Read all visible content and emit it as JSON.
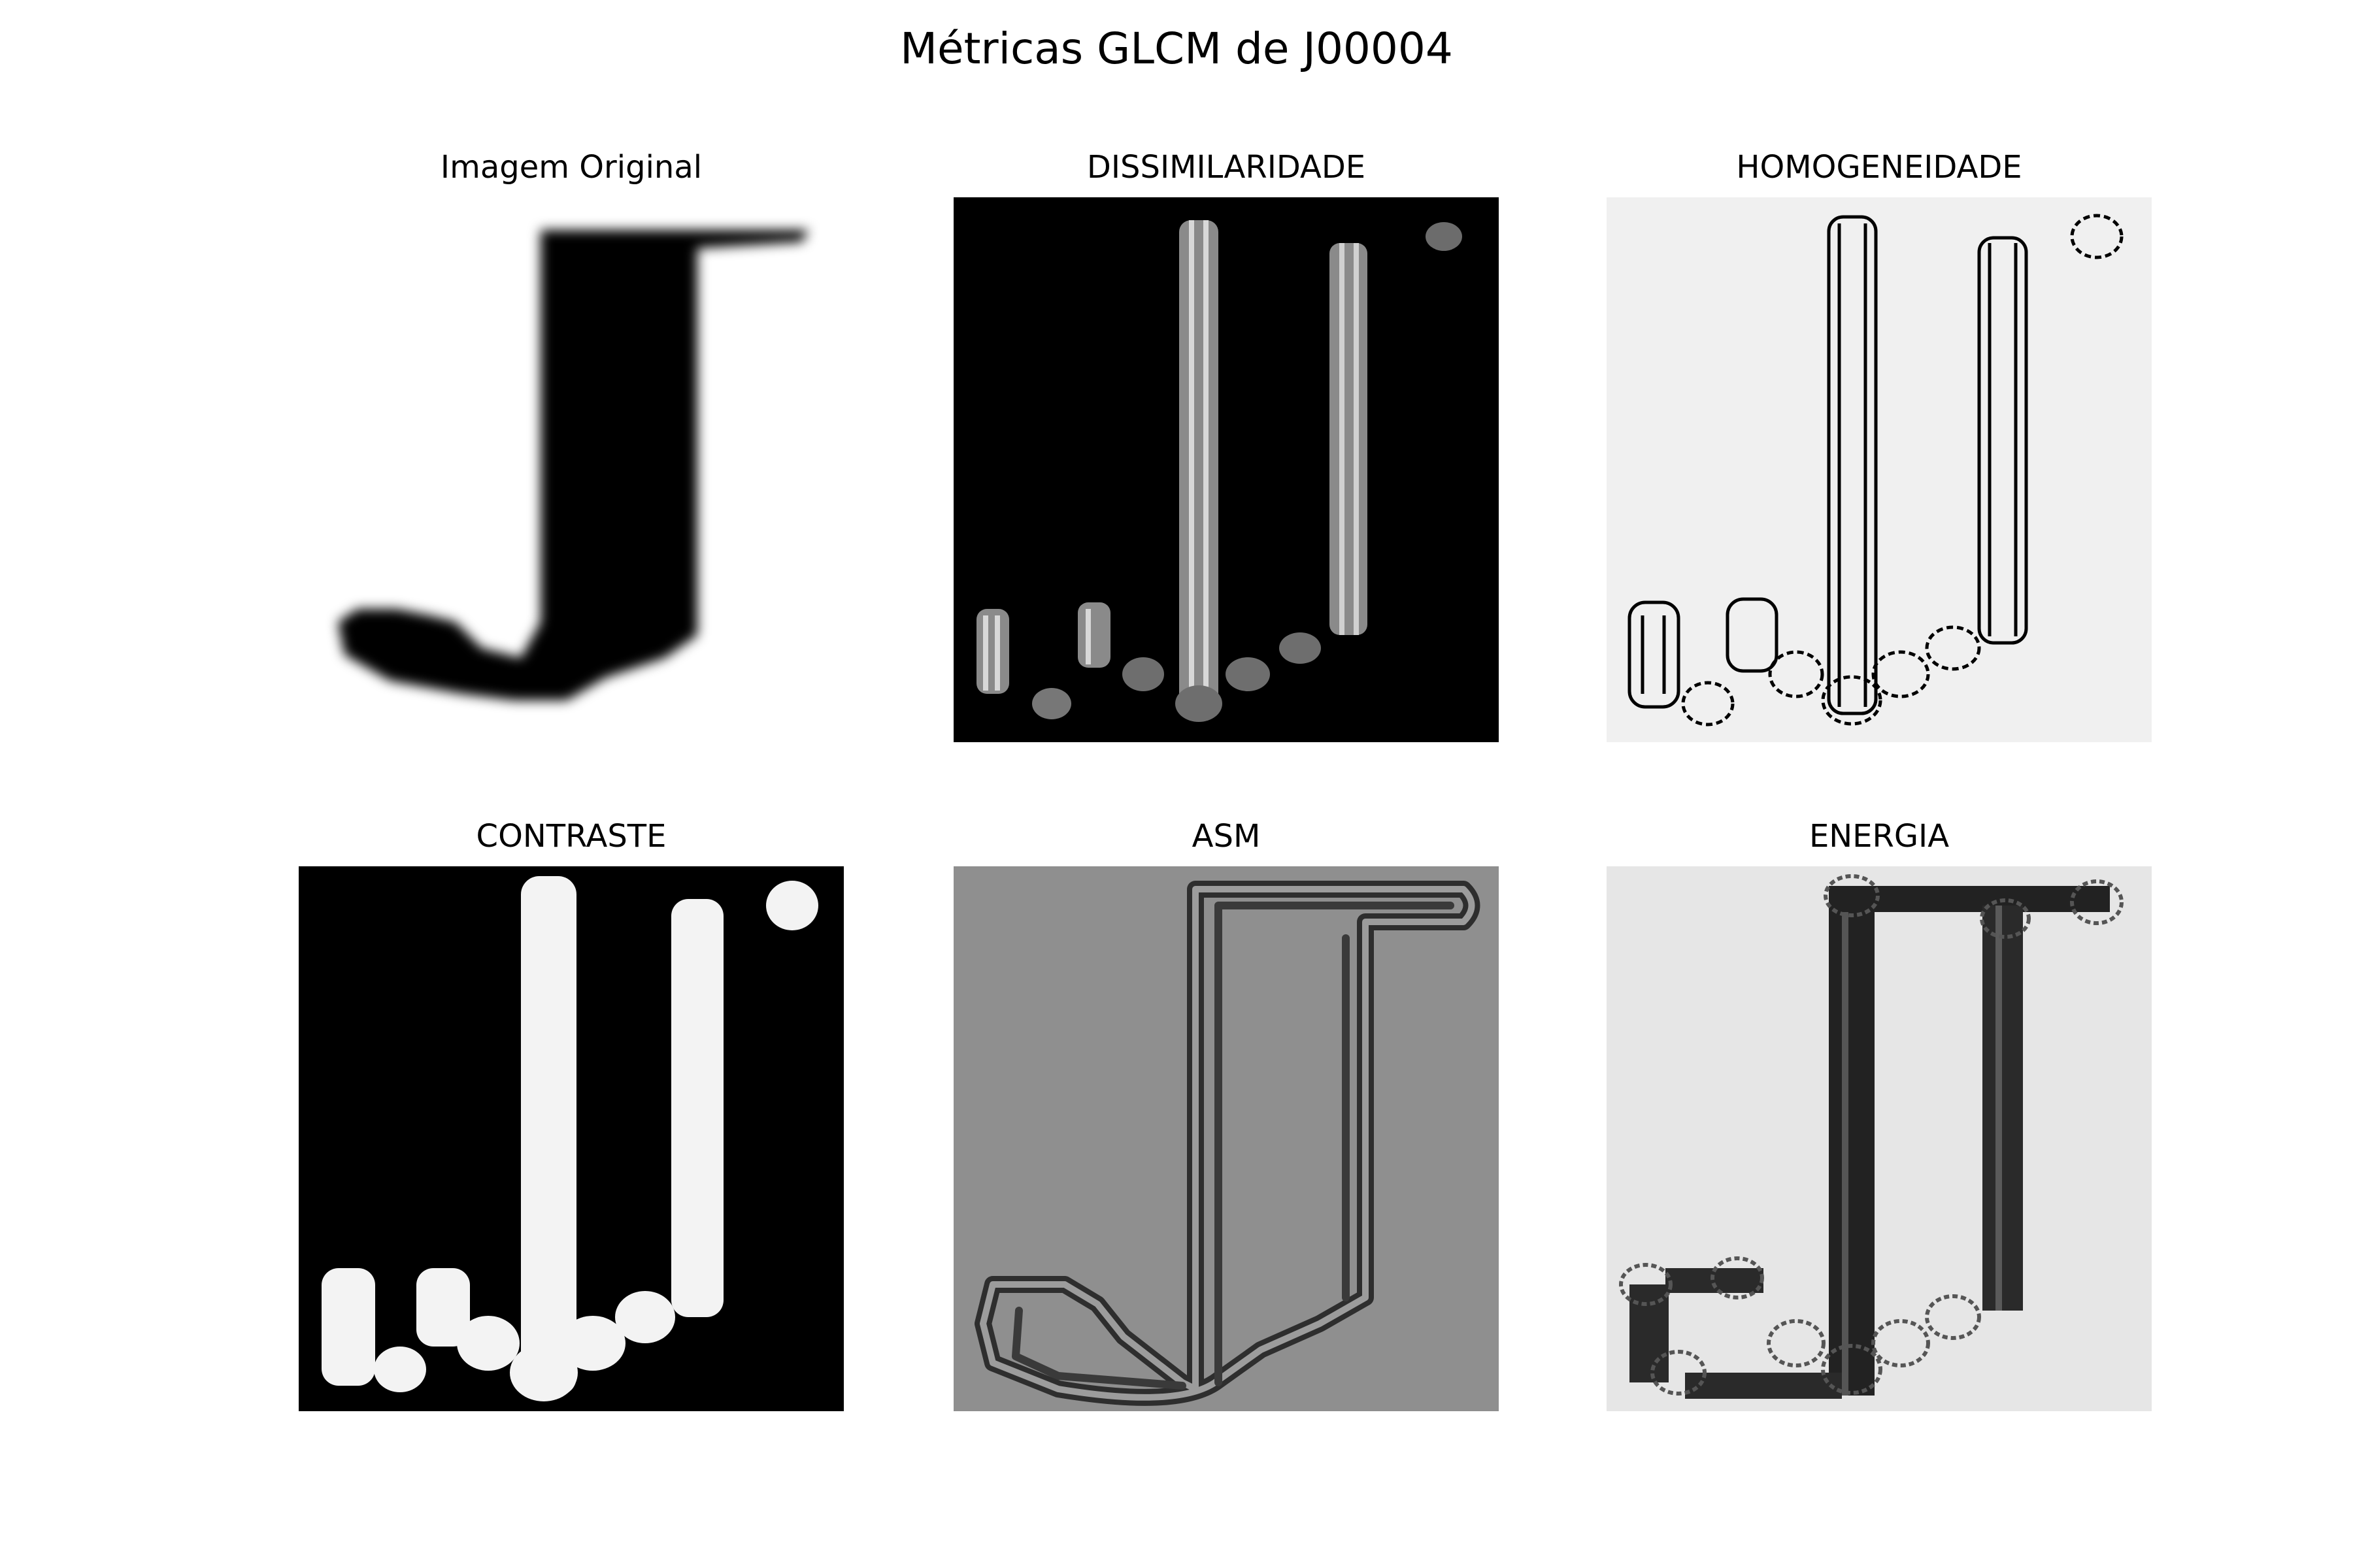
{
  "chart_data": {
    "type": "heatmap",
    "title": "Métricas GLCM de J00004",
    "panels": [
      {
        "title": "Imagem Original",
        "background": "#ffffff",
        "ink": "#000000"
      },
      {
        "title": "DISSIMILARIDADE",
        "background": "#000000",
        "ink": "#bdbdbd"
      },
      {
        "title": "HOMOGENEIDADE",
        "background": "#f0f0f0",
        "ink": "#000000"
      },
      {
        "title": "CONTRASTE",
        "background": "#000000",
        "ink": "#f3f3f3"
      },
      {
        "title": "ASM",
        "background": "#8f8f8f",
        "ink": "#3a3a3a"
      },
      {
        "title": "ENERGIA",
        "background": "#e6e6e6",
        "ink": "#2a2a2a"
      }
    ],
    "colormap": "gray",
    "axes": "off"
  }
}
